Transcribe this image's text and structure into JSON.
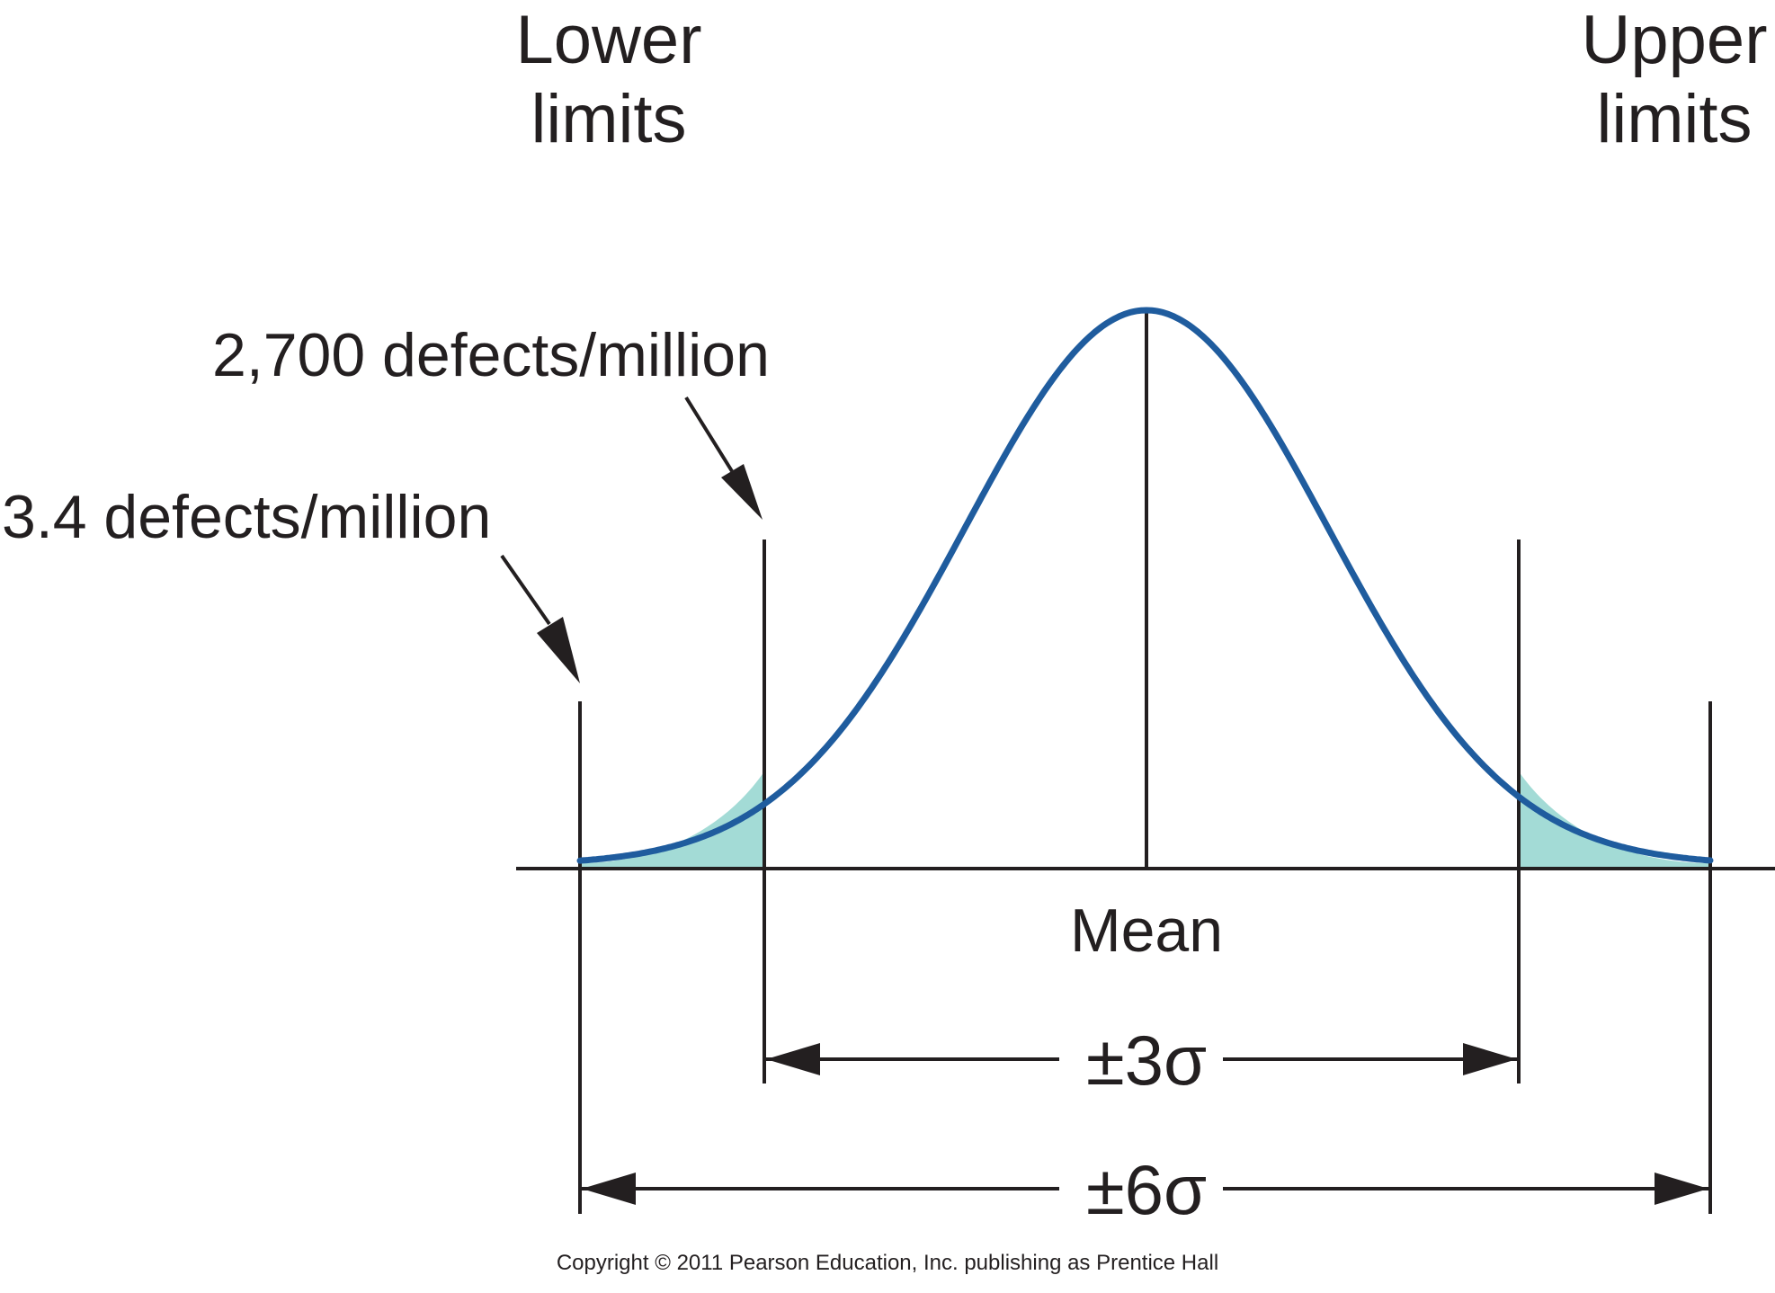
{
  "labels": {
    "lower_limits_line1": "Lower",
    "lower_limits_line2": "limits",
    "upper_limits_line1": "Upper",
    "upper_limits_line2": "limits",
    "defects_3sigma": "2,700 defects/million",
    "defects_6sigma": "3.4 defects/million",
    "mean": "Mean",
    "range_3sigma": "±3σ",
    "range_6sigma": "±6σ"
  },
  "copyright": "Copyright © 2011 Pearson Education, Inc. publishing as Prentice Hall",
  "colors": {
    "curve": "#1f5c9e",
    "tail_fill": "#a3dbd6",
    "ink": "#231f20",
    "background": "#ffffff"
  }
}
